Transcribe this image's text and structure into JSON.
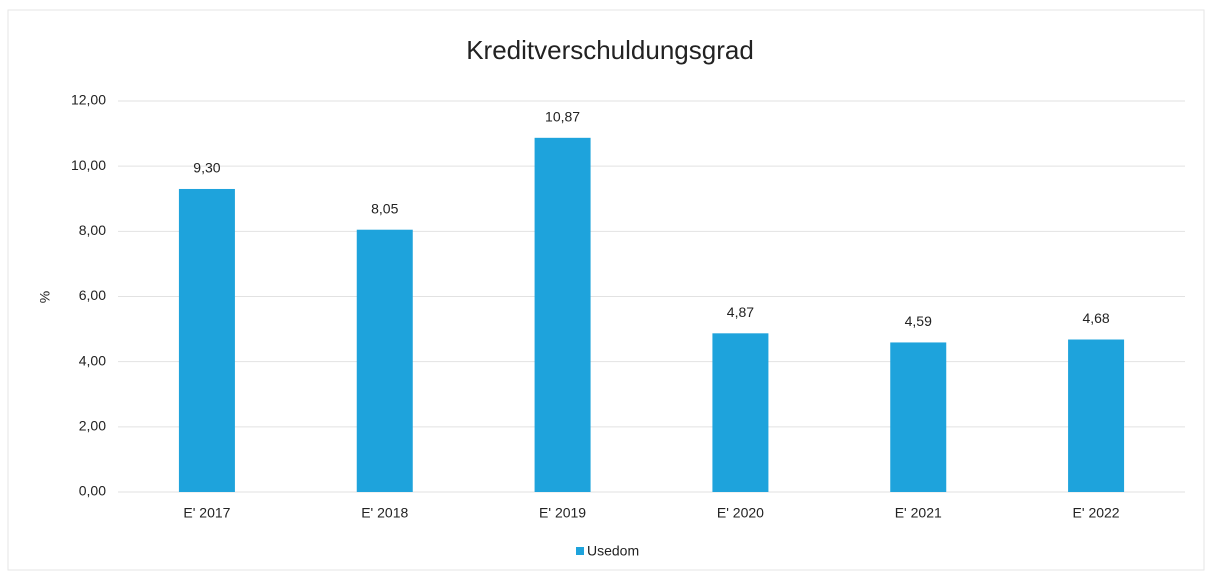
{
  "chart_data": {
    "type": "bar",
    "title": "Kreditverschuldungsgrad",
    "y_label": "%",
    "categories": [
      "E' 2017",
      "E' 2018",
      "E' 2019",
      "E' 2020",
      "E' 2021",
      "E' 2022"
    ],
    "series": [
      {
        "name": "Usedom",
        "color": "#1ea3dc",
        "values": [
          9.3,
          8.05,
          10.87,
          4.87,
          4.59,
          4.68
        ],
        "value_labels": [
          "9,30",
          "8,05",
          "10,87",
          "4,87",
          "4,59",
          "4,68"
        ]
      }
    ],
    "ylim": [
      0,
      12
    ],
    "yticks": [
      {
        "value": 0,
        "label": "0,00"
      },
      {
        "value": 2,
        "label": "2,00"
      },
      {
        "value": 4,
        "label": "4,00"
      },
      {
        "value": 6,
        "label": "6,00"
      },
      {
        "value": 8,
        "label": "8,00"
      },
      {
        "value": 10,
        "label": "10,00"
      },
      {
        "value": 12,
        "label": "12,00"
      }
    ],
    "grid": true,
    "legend": "bottom"
  }
}
